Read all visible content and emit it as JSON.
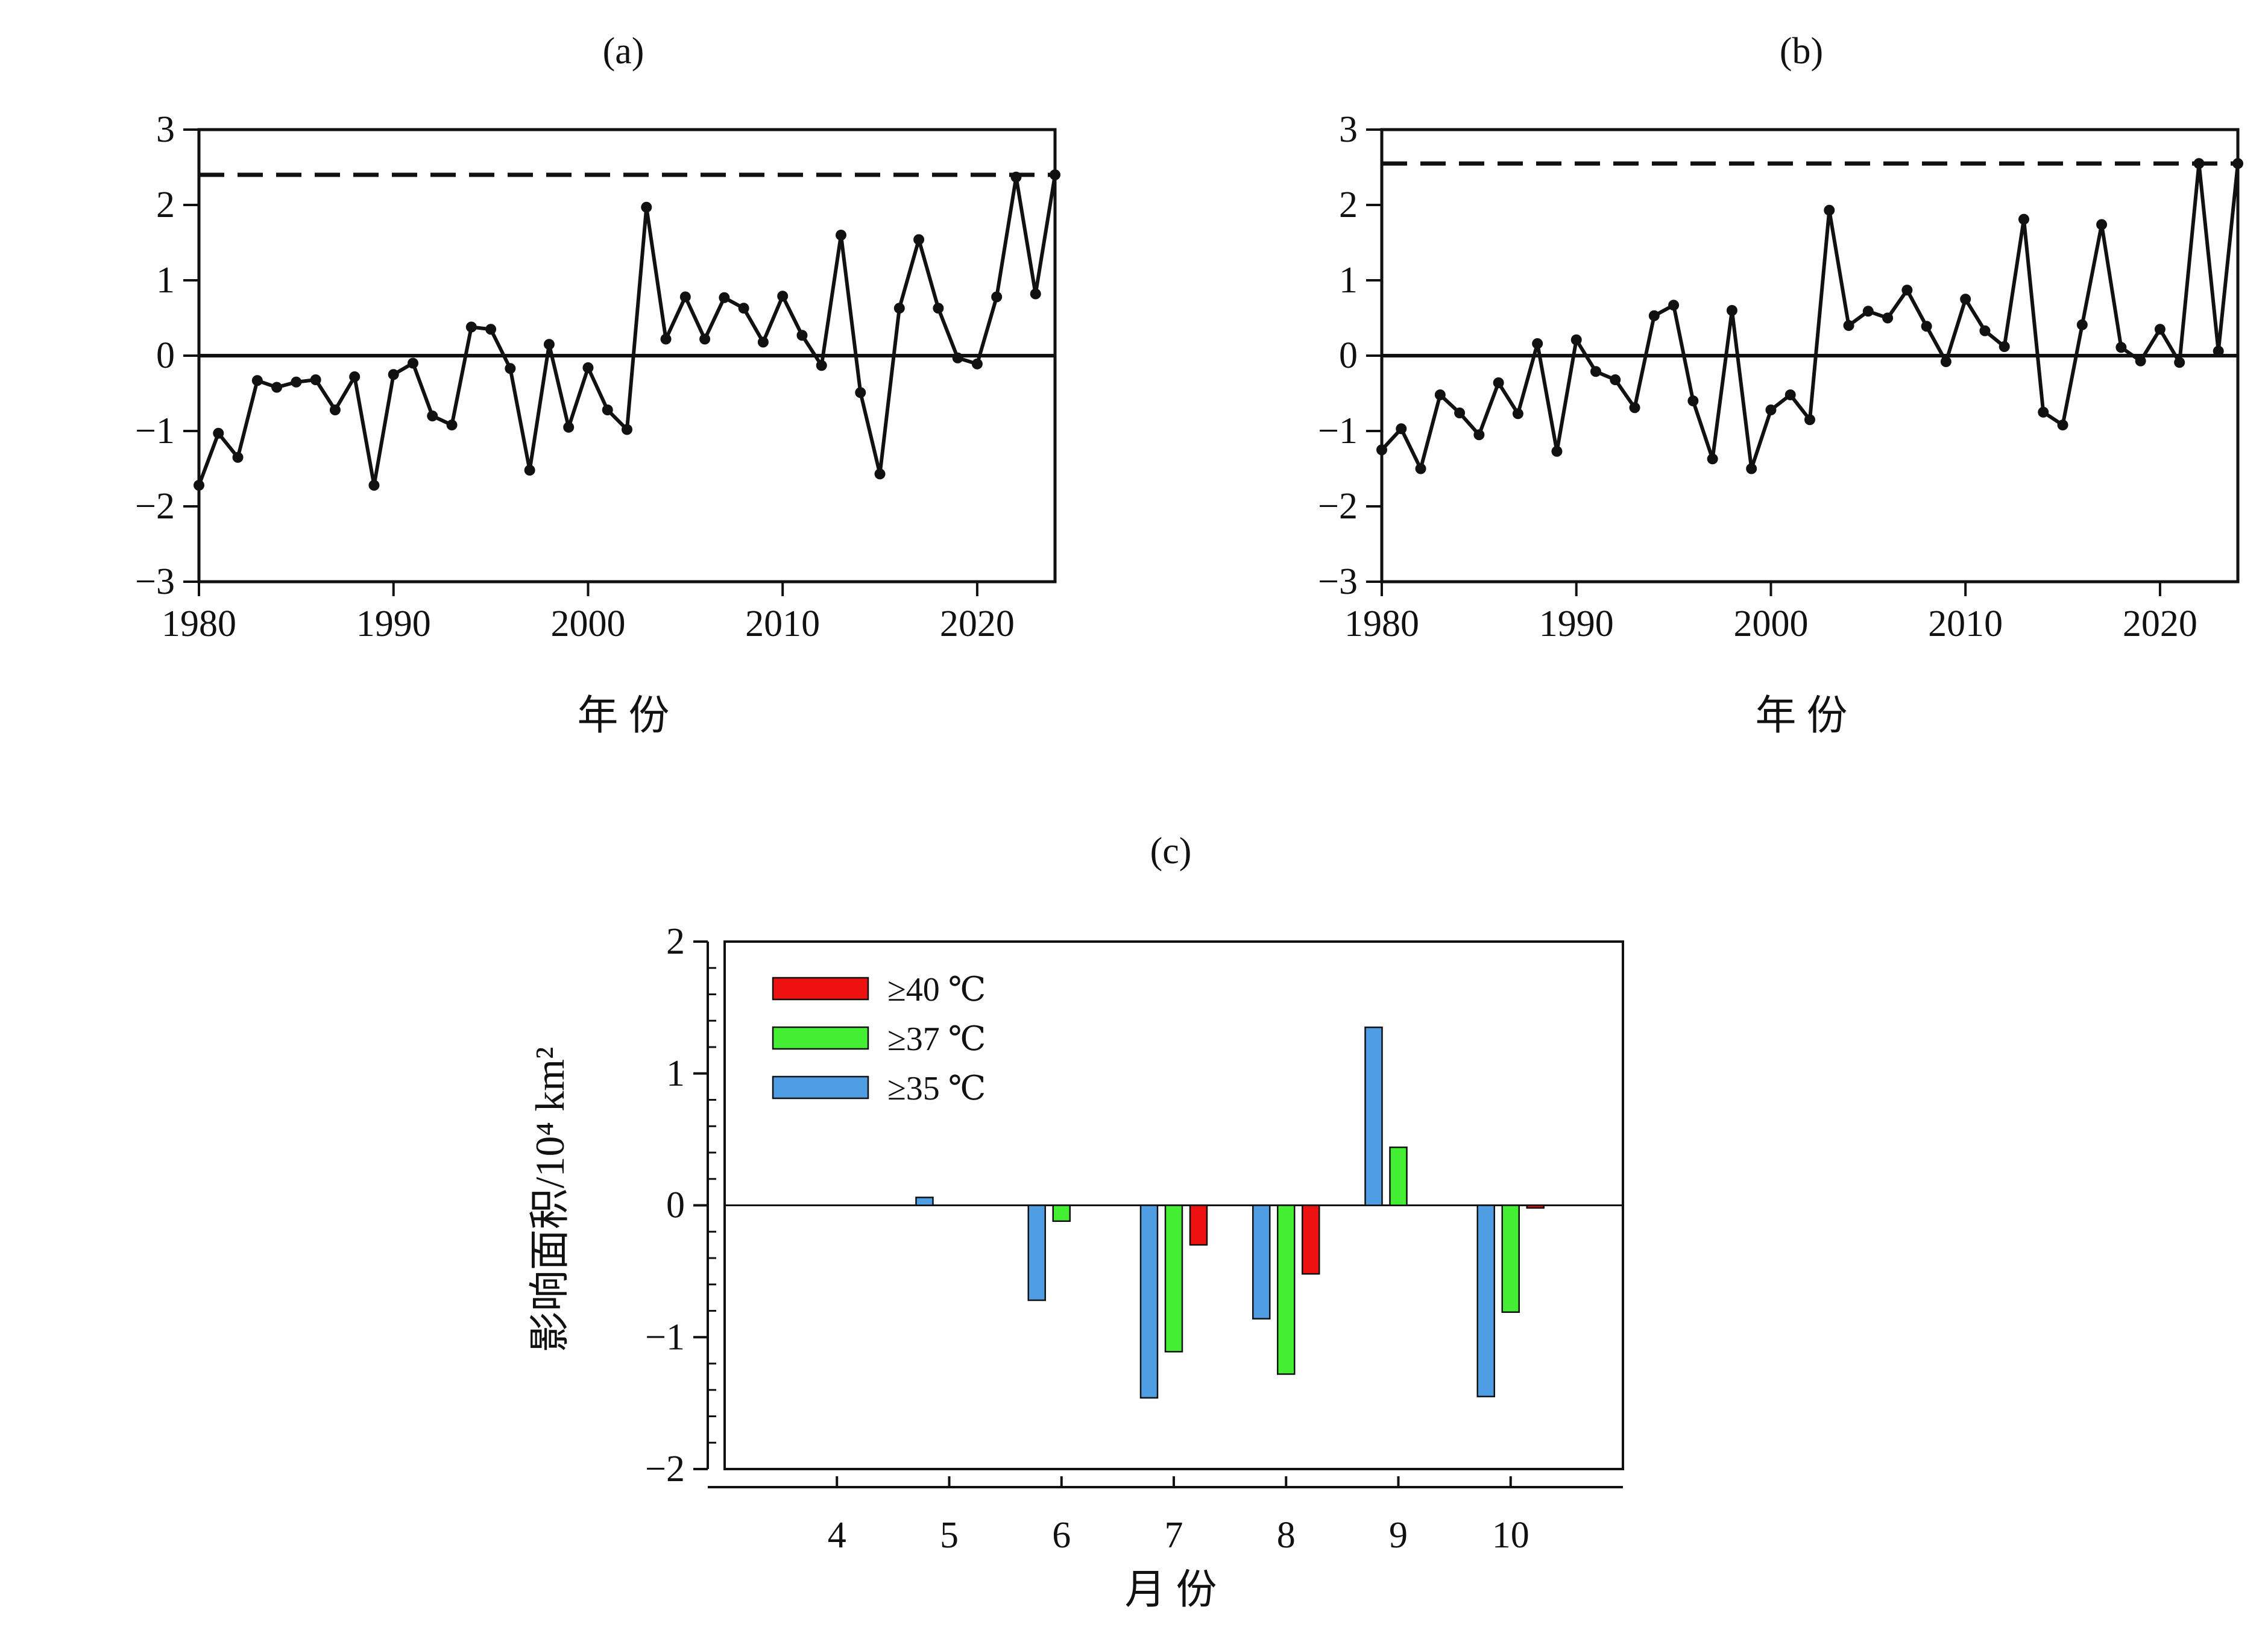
{
  "chart_data": [
    {
      "type": "line",
      "panel": "a",
      "title": "(a)",
      "xlabel": "年 份",
      "ylabel": "",
      "xlim": [
        1980,
        2024
      ],
      "ylim": [
        -3,
        3
      ],
      "xticks": [
        1980,
        1990,
        2000,
        2010,
        2020
      ],
      "yticks": [
        3,
        2,
        1,
        0,
        -1,
        -2,
        -3
      ],
      "ytick_labels": [
        "3",
        "2",
        "1",
        "0",
        "−1",
        "−2",
        "−3"
      ],
      "grid": false,
      "reference_lines": [
        {
          "style": "solid",
          "y": 0
        },
        {
          "style": "dashed",
          "y": 2.4
        }
      ],
      "series": [
        {
          "x": [
            1980,
            1981,
            1982,
            1983,
            1984,
            1985,
            1986,
            1987,
            1988,
            1989,
            1990,
            1991,
            1992,
            1993,
            1994,
            1995,
            1996,
            1997,
            1998,
            1999,
            2000,
            2001,
            2002,
            2003,
            2004,
            2005,
            2006,
            2007,
            2008,
            2009,
            2010,
            2011,
            2012,
            2013,
            2014,
            2015,
            2016,
            2017,
            2018,
            2019,
            2020,
            2021,
            2022,
            2023,
            2024
          ],
          "values": [
            -1.72,
            -1.03,
            -1.35,
            -0.33,
            -0.42,
            -0.35,
            -0.32,
            -0.72,
            -0.28,
            -1.72,
            -0.25,
            -0.1,
            -0.8,
            -0.92,
            0.38,
            0.35,
            -0.17,
            -1.52,
            0.15,
            -0.95,
            -0.16,
            -0.72,
            -0.98,
            1.97,
            0.22,
            0.78,
            0.22,
            0.77,
            0.63,
            0.18,
            0.79,
            0.27,
            -0.13,
            1.6,
            -0.49,
            -1.57,
            0.63,
            1.54,
            0.63,
            -0.03,
            -0.11,
            0.78,
            2.37,
            0.82,
            2.4
          ]
        }
      ]
    },
    {
      "type": "line",
      "panel": "b",
      "title": "(b)",
      "xlabel": "年 份",
      "ylabel": "",
      "xlim": [
        1980,
        2024
      ],
      "ylim": [
        -3,
        3
      ],
      "xticks": [
        1980,
        1990,
        2000,
        2010,
        2020
      ],
      "yticks": [
        3,
        2,
        1,
        0,
        -1,
        -2,
        -3
      ],
      "ytick_labels": [
        "3",
        "2",
        "1",
        "0",
        "−1",
        "−2",
        "−3"
      ],
      "grid": false,
      "reference_lines": [
        {
          "style": "solid",
          "y": 0
        },
        {
          "style": "dashed",
          "y": 2.55
        }
      ],
      "series": [
        {
          "x": [
            1980,
            1981,
            1982,
            1983,
            1984,
            1985,
            1986,
            1987,
            1988,
            1989,
            1990,
            1991,
            1992,
            1993,
            1994,
            1995,
            1996,
            1997,
            1998,
            1999,
            2000,
            2001,
            2002,
            2003,
            2004,
            2005,
            2006,
            2007,
            2008,
            2009,
            2010,
            2011,
            2012,
            2013,
            2014,
            2015,
            2016,
            2017,
            2018,
            2019,
            2020,
            2021,
            2022,
            2023,
            2024
          ],
          "values": [
            -1.25,
            -0.97,
            -1.5,
            -0.52,
            -0.76,
            -1.05,
            -0.36,
            -0.77,
            0.16,
            -1.27,
            0.21,
            -0.21,
            -0.32,
            -0.69,
            0.53,
            0.67,
            -0.6,
            -1.37,
            0.6,
            -1.5,
            -0.72,
            -0.52,
            -0.85,
            1.93,
            0.4,
            0.59,
            0.5,
            0.87,
            0.39,
            -0.08,
            0.75,
            0.33,
            0.12,
            1.81,
            -0.75,
            -0.92,
            0.41,
            1.74,
            0.11,
            -0.07,
            0.35,
            -0.09,
            2.55,
            0.06,
            2.55
          ]
        }
      ]
    },
    {
      "type": "bar",
      "panel": "c",
      "title": "(c)",
      "xlabel": "月 份",
      "ylabel": "影响面积/10⁴ km²",
      "categories": [
        "4",
        "5",
        "6",
        "7",
        "8",
        "9",
        "10"
      ],
      "ylim": [
        -2,
        2
      ],
      "yticks": [
        2,
        1,
        0,
        -1,
        -2
      ],
      "ytick_labels": [
        "2",
        "1",
        "0",
        "−1",
        "−2"
      ],
      "grid": false,
      "legend_position": "top-left",
      "series": [
        {
          "name": "≥35 ℃",
          "color": "#4f9de3",
          "values": [
            0,
            0.06,
            -0.72,
            -1.46,
            -0.86,
            1.35,
            -1.45
          ]
        },
        {
          "name": "≥37 ℃",
          "color": "#44ee33",
          "values": [
            0,
            0,
            -0.12,
            -1.11,
            -1.28,
            0.44,
            -0.81
          ]
        },
        {
          "name": "≥40 ℃",
          "color": "#ee1111",
          "values": [
            0,
            0,
            0,
            -0.3,
            -0.52,
            0,
            -0.02
          ]
        }
      ]
    }
  ]
}
